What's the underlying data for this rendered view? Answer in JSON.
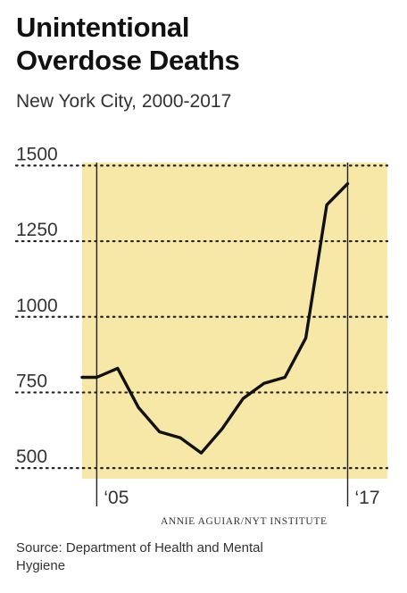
{
  "header": {
    "title_line1": "Unintentional",
    "title_line2": "Overdose Deaths",
    "subtitle": "New York City, 2000-2017"
  },
  "chart_data": {
    "type": "line",
    "title": "Unintentional Overdose Deaths",
    "subtitle": "New York City, 2000-2017",
    "x": [
      2005,
      2006,
      2007,
      2008,
      2009,
      2010,
      2011,
      2012,
      2013,
      2014,
      2015,
      2016,
      2017
    ],
    "series": [
      {
        "values": [
          800,
          830,
          700,
          620,
          600,
          550,
          630,
          730,
          780,
          800,
          930,
          1370,
          1440
        ]
      }
    ],
    "x_range": [
      2004.3,
      2018.9
    ],
    "ylim": [
      465,
      1510
    ],
    "y_ticks": [
      {
        "value": 1500,
        "label": "1500"
      },
      {
        "value": 1250,
        "label": "1250"
      },
      {
        "value": 1000,
        "label": "1000"
      },
      {
        "value": 750,
        "label": "750"
      },
      {
        "value": 500,
        "label": "500"
      }
    ],
    "x_markers": [
      {
        "value": 2005,
        "label": "‘05"
      },
      {
        "value": 2017,
        "label": "‘17"
      }
    ],
    "grid": "dotted horizontal",
    "colors": {
      "background": "#f8e8a8",
      "line": "#111111",
      "grid": "#222222"
    }
  },
  "footer": {
    "credit": "ANNIE AGUIAR/NYT INSTITUTE",
    "source": "Source: Department of Health and Mental Hygiene"
  }
}
